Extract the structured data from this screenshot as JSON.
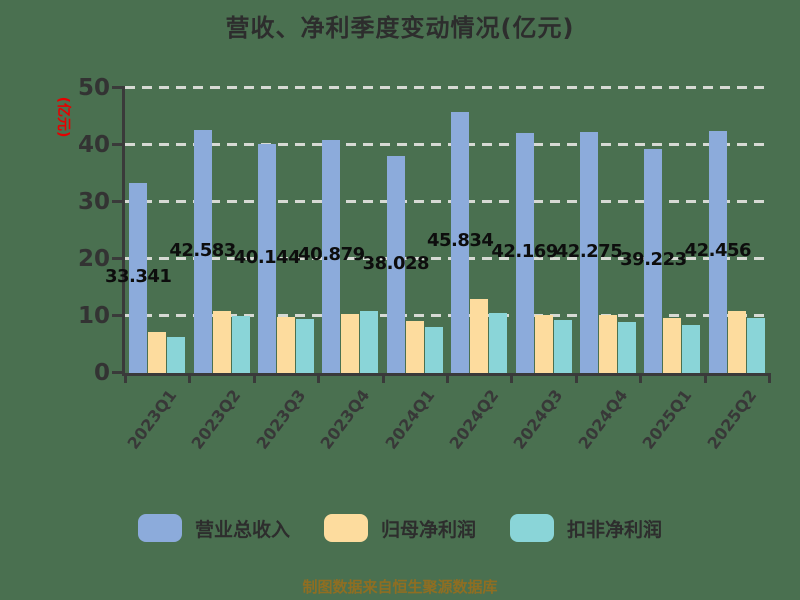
{
  "title": "营收、净利季度变动情况(亿元)",
  "y_axis": {
    "name": "(亿元)",
    "name_color": "#e60000",
    "ticks": [
      "0",
      "10",
      "20",
      "30",
      "40",
      "50"
    ]
  },
  "legend": [
    {
      "label": "营业总收入",
      "color": "#8cabdb"
    },
    {
      "label": "归母净利润",
      "color": "#fddc9e"
    },
    {
      "label": "扣非净利润",
      "color": "#8ad5d8"
    }
  ],
  "footer": "制图数据来自恒生聚源数据库",
  "colors": {
    "background": "#4a7050",
    "axis": "#3a3a3a",
    "gridline": "#d7dad4",
    "value_label": "#0d0d0d",
    "footer_text": "#8f6e22"
  },
  "chart_data": {
    "type": "bar",
    "title": "营收、净利季度变动情况(亿元)",
    "ylabel": "(亿元)",
    "ylim": [
      0,
      50
    ],
    "grid": "horizontal dashed",
    "legend_position": "bottom",
    "categories": [
      "2023Q1",
      "2023Q2",
      "2023Q3",
      "2023Q4",
      "2024Q1",
      "2024Q2",
      "2024Q3",
      "2024Q4",
      "2025Q1",
      "2025Q2"
    ],
    "series": [
      {
        "name": "营业总收入",
        "key": "revenue",
        "color": "#8cabdb",
        "values": [
          33.341,
          42.583,
          40.144,
          40.879,
          38.028,
          45.834,
          42.169,
          42.275,
          39.223,
          42.456
        ],
        "labels": [
          "33.341",
          "42.583",
          "40.144",
          "40.879",
          "38.028",
          "45.834",
          "42.169",
          "42.275",
          "39.223",
          "42.456"
        ]
      },
      {
        "name": "归母净利润",
        "key": "net-profit",
        "color": "#fddc9e",
        "values": [
          7.2,
          10.8,
          9.9,
          10.4,
          9.2,
          13.0,
          10.2,
          10.1,
          9.6,
          10.9
        ]
      },
      {
        "name": "扣非净利润",
        "key": "non-recurring-net-profit",
        "color": "#8ad5d8",
        "values": [
          6.4,
          10.0,
          9.4,
          10.8,
          8.1,
          10.6,
          9.3,
          8.9,
          8.5,
          9.6
        ]
      }
    ]
  }
}
